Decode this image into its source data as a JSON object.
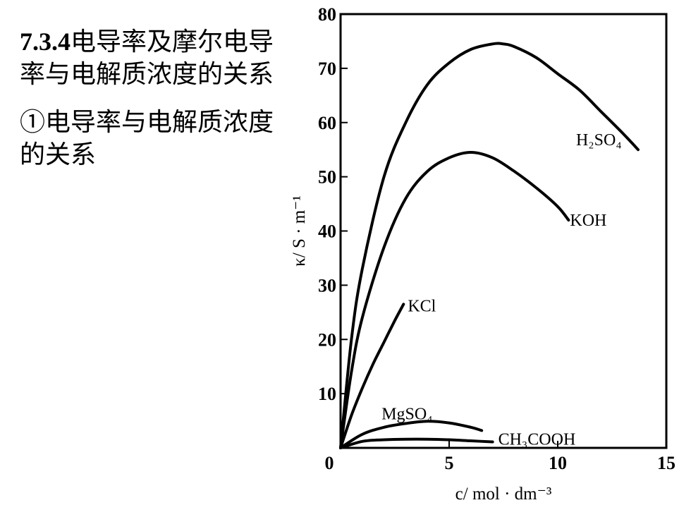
{
  "text": {
    "heading_num": "7.3.4",
    "heading_rest": "电导率及摩尔电导率与电解质浓度的关系",
    "subheading": "①电导率与电解质浓度的关系"
  },
  "chart_data": {
    "type": "line",
    "xlabel": "c/ mol · dm⁻³",
    "ylabel": "κ/ S · m⁻¹",
    "xlim": [
      0,
      15
    ],
    "ylim": [
      0,
      80
    ],
    "x_ticks": [
      "0",
      "5",
      "10",
      "15"
    ],
    "y_ticks": [
      "10",
      "20",
      "30",
      "40",
      "50",
      "60",
      "70",
      "80"
    ],
    "grid": false,
    "series": [
      {
        "name": "H₂SO₄",
        "x": [
          0,
          0.5,
          1,
          2,
          3,
          4,
          5,
          6,
          7,
          7.5,
          8,
          9,
          10,
          11,
          12,
          13,
          13.7
        ],
        "y": [
          0,
          20,
          33,
          50,
          60,
          67,
          71,
          73.5,
          74.5,
          74.5,
          74,
          72,
          69,
          66,
          62,
          58,
          55
        ]
      },
      {
        "name": "KOH",
        "x": [
          0,
          0.5,
          1,
          2,
          3,
          4,
          5,
          6,
          7,
          8,
          9,
          10,
          10.5
        ],
        "y": [
          0,
          14,
          24,
          37,
          46,
          51,
          53.5,
          54.5,
          53.5,
          51,
          48,
          44.5,
          42
        ]
      },
      {
        "name": "KCl",
        "x": [
          0,
          0.5,
          1,
          1.5,
          2,
          2.5,
          2.9
        ],
        "y": [
          0,
          6,
          11,
          15.5,
          19.5,
          23.5,
          26.5
        ]
      },
      {
        "name": "MgSO₄",
        "x": [
          0,
          1,
          2,
          3,
          4,
          5,
          6,
          6.5
        ],
        "y": [
          0,
          2.5,
          3.8,
          4.5,
          4.9,
          4.6,
          3.8,
          3.2
        ]
      },
      {
        "name": "CH₃COOH",
        "x": [
          0,
          1,
          2,
          3,
          4,
          5,
          6,
          7
        ],
        "y": [
          0,
          1.2,
          1.5,
          1.6,
          1.6,
          1.5,
          1.3,
          1.1
        ]
      }
    ]
  }
}
